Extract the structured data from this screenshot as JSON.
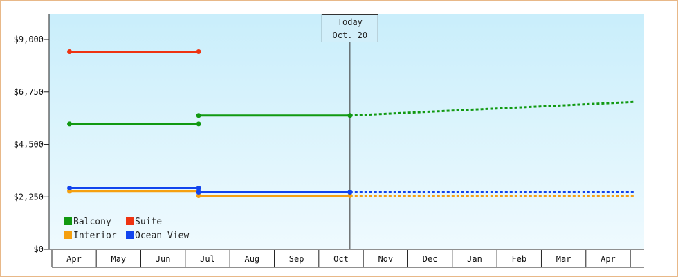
{
  "chart_data": {
    "type": "line",
    "y_ticks": [
      "$0",
      "$2,250",
      "$4,500",
      "$6,750",
      "$9,000"
    ],
    "y_tick_values": [
      0,
      2250,
      4500,
      6750,
      9000
    ],
    "ylim": [
      0,
      10100
    ],
    "x_ticks": [
      "Apr",
      "May",
      "Jun",
      "Jul",
      "Aug",
      "Sep",
      "Oct",
      "Nov",
      "Dec",
      "Jan",
      "Feb",
      "Mar",
      "Apr"
    ],
    "grid": false,
    "legend_position": "bottom-left",
    "today_marker": {
      "line1": "Today",
      "line2": "Oct. 20",
      "x": 6.2
    },
    "series": [
      {
        "name": "Balcony",
        "color": "#119911",
        "segments": [
          {
            "style": "solid",
            "points": [
              [
                -0.1,
                5380
              ],
              [
                2.8,
                5380
              ]
            ]
          },
          {
            "style": "solid",
            "points": [
              [
                2.8,
                5740
              ],
              [
                6.2,
                5740
              ]
            ]
          },
          {
            "style": "dotted",
            "points": [
              [
                6.2,
                5740
              ],
              [
                12.6,
                6320
              ]
            ]
          }
        ]
      },
      {
        "name": "Suite",
        "color": "#ee3311",
        "segments": [
          {
            "style": "solid",
            "points": [
              [
                -0.1,
                8480
              ],
              [
                2.8,
                8480
              ]
            ]
          }
        ]
      },
      {
        "name": "Interior",
        "color": "#f5a010",
        "segments": [
          {
            "style": "solid",
            "points": [
              [
                -0.1,
                2500
              ],
              [
                2.8,
                2500
              ]
            ]
          },
          {
            "style": "solid",
            "points": [
              [
                2.8,
                2300
              ],
              [
                6.2,
                2300
              ]
            ]
          },
          {
            "style": "dotted",
            "points": [
              [
                6.2,
                2300
              ],
              [
                12.6,
                2300
              ]
            ]
          }
        ]
      },
      {
        "name": "Ocean View",
        "color": "#1144ee",
        "segments": [
          {
            "style": "solid",
            "points": [
              [
                -0.1,
                2630
              ],
              [
                2.8,
                2630
              ]
            ]
          },
          {
            "style": "solid",
            "points": [
              [
                2.8,
                2450
              ],
              [
                6.2,
                2450
              ]
            ]
          },
          {
            "style": "dotted",
            "points": [
              [
                6.2,
                2450
              ],
              [
                12.6,
                2450
              ]
            ]
          }
        ]
      }
    ],
    "markers": [
      {
        "series": "Balcony",
        "points": [
          [
            -0.1,
            5380
          ],
          [
            2.8,
            5380
          ],
          [
            2.8,
            5740
          ],
          [
            6.2,
            5740
          ]
        ]
      },
      {
        "series": "Suite",
        "points": [
          [
            -0.1,
            8480
          ],
          [
            2.8,
            8480
          ]
        ]
      },
      {
        "series": "Interior",
        "points": [
          [
            -0.1,
            2500
          ],
          [
            2.8,
            2300
          ],
          [
            6.2,
            2300
          ]
        ]
      },
      {
        "series": "Ocean View",
        "points": [
          [
            -0.1,
            2630
          ],
          [
            2.8,
            2630
          ],
          [
            2.8,
            2450
          ],
          [
            6.2,
            2450
          ]
        ]
      }
    ],
    "legend": [
      {
        "name": "Balcony",
        "color": "#119911"
      },
      {
        "name": "Suite",
        "color": "#ee3311"
      },
      {
        "name": "Interior",
        "color": "#f5a010"
      },
      {
        "name": "Ocean View",
        "color": "#1144ee"
      }
    ]
  }
}
